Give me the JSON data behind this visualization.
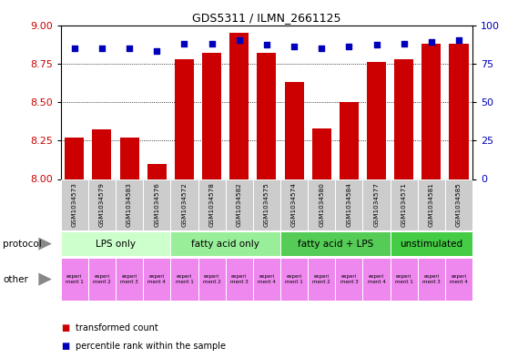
{
  "title": "GDS5311 / ILMN_2661125",
  "samples": [
    "GSM1034573",
    "GSM1034579",
    "GSM1034583",
    "GSM1034576",
    "GSM1034572",
    "GSM1034578",
    "GSM1034582",
    "GSM1034575",
    "GSM1034574",
    "GSM1034580",
    "GSM1034584",
    "GSM1034577",
    "GSM1034571",
    "GSM1034581",
    "GSM1034585"
  ],
  "transformed_count": [
    8.27,
    8.32,
    8.27,
    8.1,
    8.78,
    8.82,
    8.95,
    8.82,
    8.63,
    8.33,
    8.5,
    8.76,
    8.78,
    8.88,
    8.88
  ],
  "percentile_rank": [
    85,
    85,
    85,
    83,
    88,
    88,
    90,
    87,
    86,
    85,
    86,
    87,
    88,
    89,
    90
  ],
  "ylim_left": [
    8.0,
    9.0
  ],
  "ylim_right": [
    0,
    100
  ],
  "yticks_left": [
    8.0,
    8.25,
    8.5,
    8.75,
    9.0
  ],
  "yticks_right": [
    0,
    25,
    50,
    75,
    100
  ],
  "bar_color": "#cc0000",
  "dot_color": "#0000bb",
  "protocols": [
    {
      "label": "LPS only",
      "start": 0,
      "end": 4,
      "color": "#ccffcc"
    },
    {
      "label": "fatty acid only",
      "start": 4,
      "end": 8,
      "color": "#99ee99"
    },
    {
      "label": "fatty acid + LPS",
      "start": 8,
      "end": 12,
      "color": "#55cc55"
    },
    {
      "label": "unstimulated",
      "start": 12,
      "end": 15,
      "color": "#44cc44"
    }
  ],
  "experiment_colors": [
    "#ee88ee",
    "#ee88ee",
    "#ee88ee",
    "#ee88ee",
    "#ee88ee",
    "#ee88ee",
    "#ee88ee",
    "#ee88ee",
    "#ee88ee",
    "#ee88ee",
    "#ee88ee",
    "#ee88ee",
    "#ee88ee",
    "#ee88ee",
    "#ee88ee"
  ],
  "experiment_labels": [
    "experi\nment 1",
    "experi\nment 2",
    "experi\nment 3",
    "experi\nment 4",
    "experi\nment 1",
    "experi\nment 2",
    "experi\nment 3",
    "experi\nment 4",
    "experi\nment 1",
    "experi\nment 2",
    "experi\nment 3",
    "experi\nment 4",
    "experi\nment 1",
    "experi\nment 3",
    "experi\nment 4"
  ],
  "legend_items": [
    {
      "color": "#cc0000",
      "label": "transformed count"
    },
    {
      "color": "#0000bb",
      "label": "percentile rank within the sample"
    }
  ],
  "bg_color": "#ffffff",
  "plot_bg_color": "#ffffff",
  "left_label_color": "#cc0000",
  "right_label_color": "#0000bb",
  "sample_bg_color": "#cccccc",
  "sample_text_color": "#000000"
}
